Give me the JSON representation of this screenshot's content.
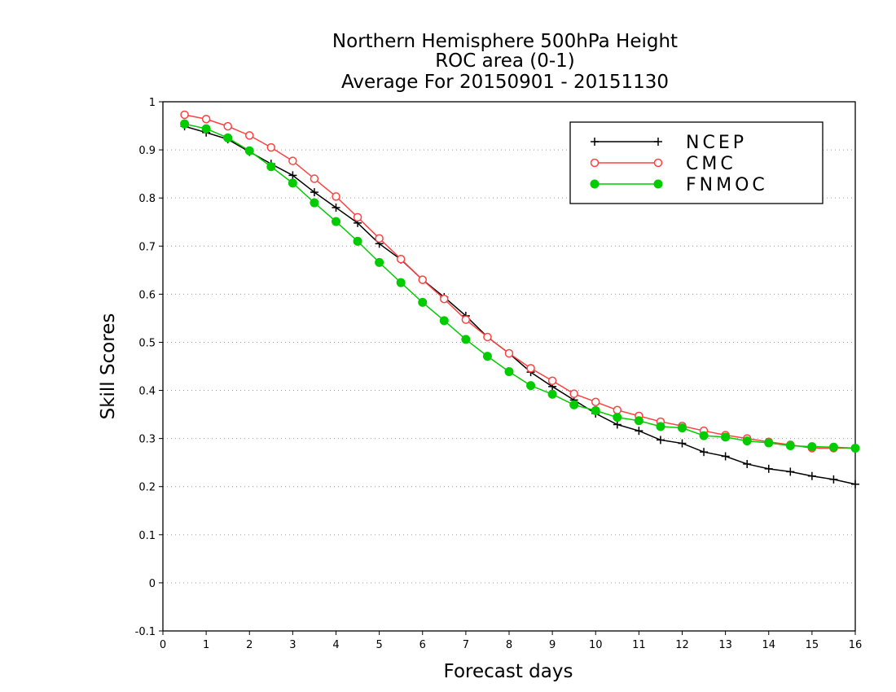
{
  "chart_data": {
    "type": "line",
    "title": [
      "Northern Hemisphere 500hPa Height",
      "ROC area (0-1)",
      "Average For 20150901 - 20151130"
    ],
    "xlabel": "Forecast days",
    "ylabel": "Skill Scores",
    "xlim": [
      0,
      16
    ],
    "ylim": [
      -0.1,
      1
    ],
    "xticks": [
      0,
      1,
      2,
      3,
      4,
      5,
      6,
      7,
      8,
      9,
      10,
      11,
      12,
      13,
      14,
      15,
      16
    ],
    "yticks": [
      -0.1,
      0,
      0.1,
      0.2,
      0.3,
      0.4,
      0.5,
      0.6,
      0.7,
      0.8,
      0.9,
      1
    ],
    "ytick_labels": [
      "-0.1",
      "0",
      "0.1",
      "0.2",
      "0.3",
      "0.4",
      "0.5",
      "0.6",
      "0.7",
      "0.8",
      "0.9",
      "1"
    ],
    "grid": "horizontal dotted",
    "legend_position": "top-right",
    "x": [
      0.5,
      1,
      1.5,
      2,
      2.5,
      3,
      3.5,
      4,
      4.5,
      5,
      5.5,
      6,
      6.5,
      7,
      7.5,
      8,
      8.5,
      9,
      9.5,
      10,
      10.5,
      11,
      11.5,
      12,
      12.5,
      13,
      13.5,
      14,
      14.5,
      15,
      15.5,
      16
    ],
    "series": [
      {
        "name": "NCEP",
        "color": "#000000",
        "marker": "plus",
        "values": [
          0.949,
          0.936,
          0.922,
          0.896,
          0.871,
          0.847,
          0.812,
          0.78,
          0.748,
          0.705,
          0.672,
          0.63,
          0.594,
          0.555,
          0.511,
          0.477,
          0.438,
          0.408,
          0.38,
          0.352,
          0.329,
          0.316,
          0.297,
          0.29,
          0.272,
          0.263,
          0.247,
          0.237,
          0.231,
          0.222,
          0.215,
          0.205
        ]
      },
      {
        "name": "CMC",
        "color": "#ff4040",
        "marker": "open-circle",
        "values": [
          0.973,
          0.964,
          0.949,
          0.93,
          0.905,
          0.877,
          0.84,
          0.803,
          0.76,
          0.716,
          0.673,
          0.63,
          0.59,
          0.547,
          0.511,
          0.477,
          0.446,
          0.42,
          0.393,
          0.376,
          0.359,
          0.347,
          0.335,
          0.326,
          0.316,
          0.307,
          0.3,
          0.293,
          0.287,
          0.28,
          0.28,
          0.28
        ]
      },
      {
        "name": "FNMOC",
        "color": "#00cc00",
        "marker": "filled-circle",
        "values": [
          0.954,
          0.944,
          0.925,
          0.898,
          0.865,
          0.831,
          0.79,
          0.751,
          0.71,
          0.666,
          0.624,
          0.583,
          0.545,
          0.506,
          0.471,
          0.439,
          0.41,
          0.392,
          0.37,
          0.358,
          0.344,
          0.337,
          0.325,
          0.322,
          0.306,
          0.303,
          0.295,
          0.291,
          0.285,
          0.283,
          0.282,
          0.28
        ]
      }
    ]
  }
}
